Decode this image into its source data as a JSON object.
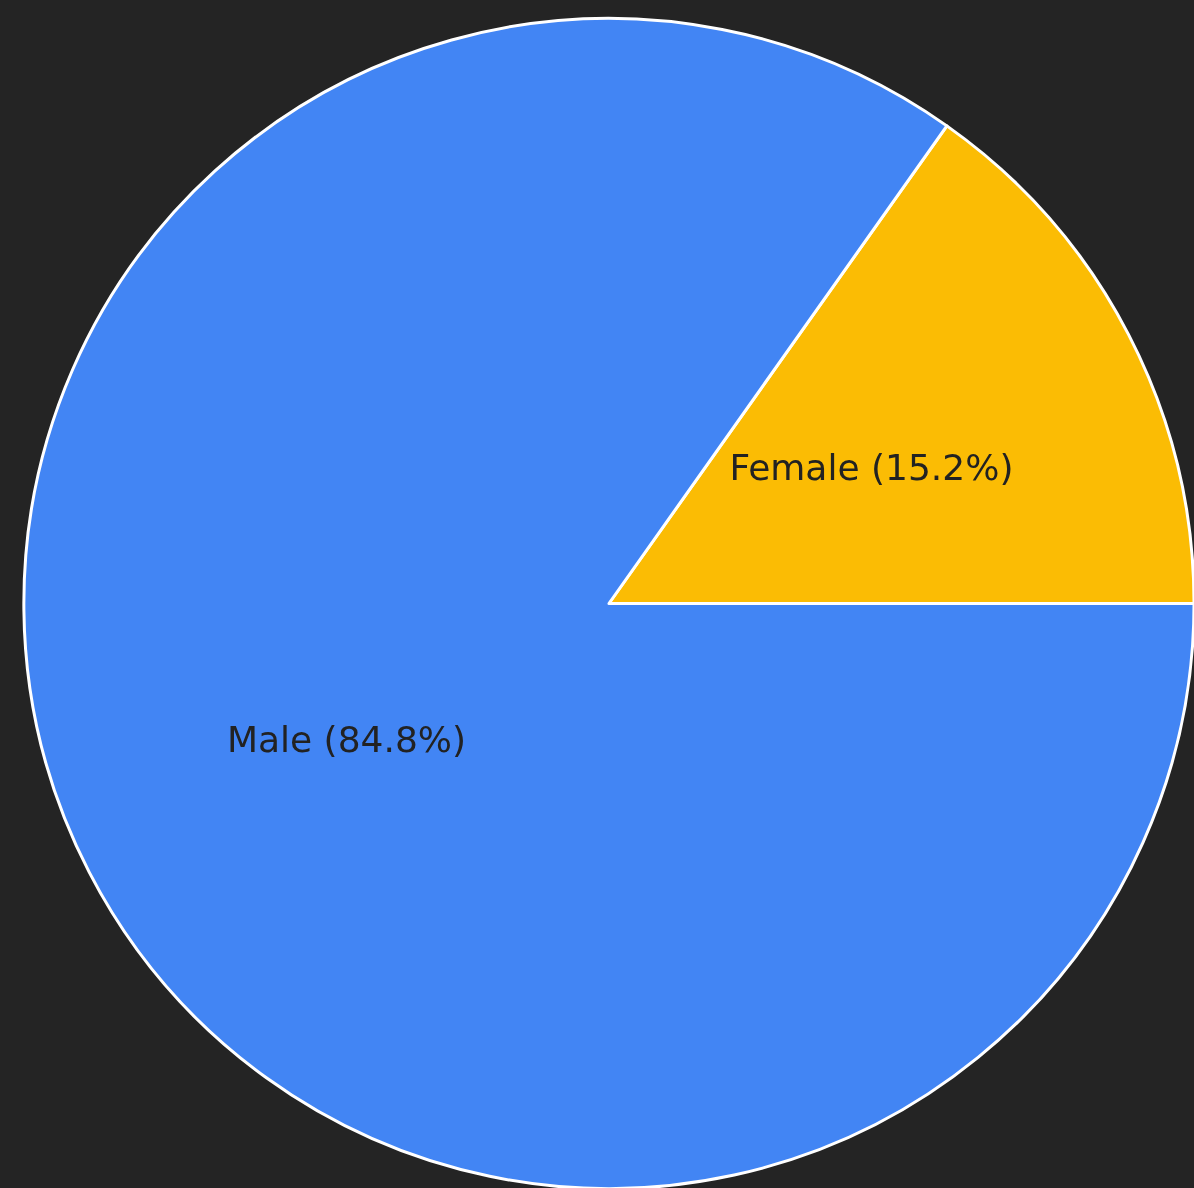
{
  "chart_data": {
    "type": "pie",
    "categories": [
      "Female",
      "Male"
    ],
    "values": [
      15.2,
      84.8
    ],
    "colors": [
      "#fbbc04",
      "#4285f4"
    ],
    "value_labels": [
      "(15.2%)",
      "(84.8%)"
    ],
    "legend": false
  }
}
